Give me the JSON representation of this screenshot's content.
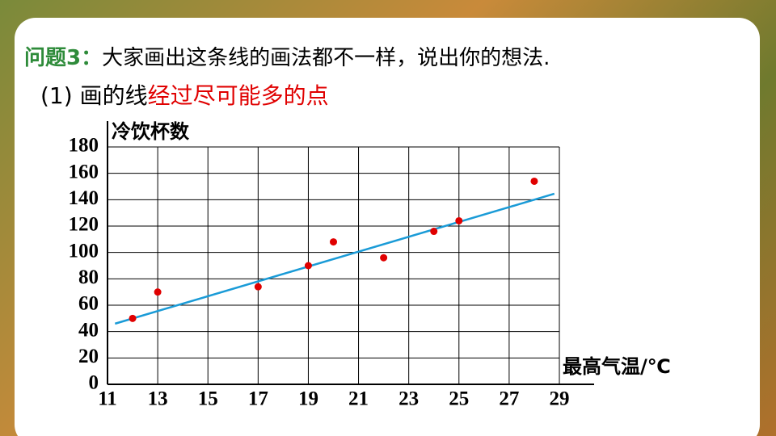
{
  "header": {
    "label": "问题3：",
    "question": "大家画出这条线的画法都不一样，说出你的想法.",
    "item": "(1) 画的线",
    "highlight": "经过尽可能多的点"
  },
  "chart_data": {
    "type": "scatter",
    "ylabel": "冷饮杯数",
    "xlabel": "最高气温/℃",
    "x": [
      12,
      13,
      17,
      19,
      20,
      22,
      24,
      25,
      28
    ],
    "values": [
      50,
      70,
      74,
      90,
      108,
      96,
      116,
      124,
      154
    ],
    "color": "#e00000",
    "trend_line": {
      "x": [
        11.3,
        28.8
      ],
      "values": [
        46,
        144.5
      ],
      "color": "#1a9bd7"
    },
    "xlim": [
      11,
      29
    ],
    "xticks": [
      11,
      13,
      15,
      17,
      19,
      21,
      23,
      25,
      27,
      29
    ],
    "ylim": [
      0,
      180
    ],
    "yticks": [
      0,
      20,
      40,
      60,
      80,
      100,
      120,
      140,
      160,
      180
    ],
    "grid": true
  }
}
